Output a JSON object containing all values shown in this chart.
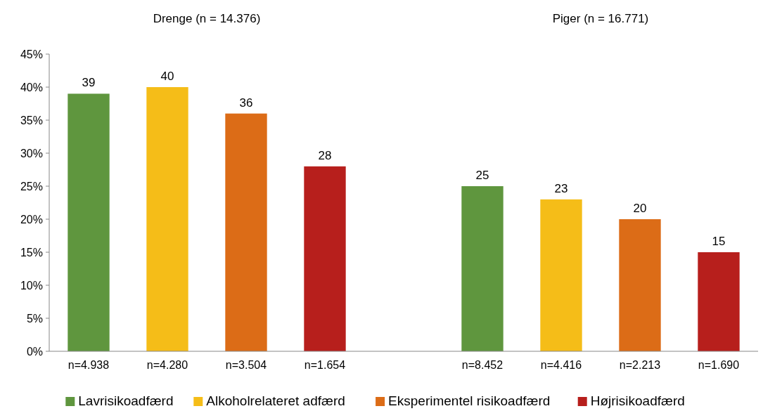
{
  "chart_data": {
    "type": "bar",
    "categories": [
      "n=4.938",
      "n=4.280",
      "n=3.504",
      "n=1.654",
      null,
      "n=8.452",
      "n=4.416",
      "n=2.213",
      "n=1.690"
    ],
    "series": [
      {
        "name": "Lavrisikoadfærd",
        "color": "#5f963e",
        "values": [
          39,
          null,
          null,
          null,
          null,
          25,
          null,
          null,
          null
        ]
      },
      {
        "name": "Alkoholrelateret adfærd",
        "color": "#f5bd18",
        "values": [
          null,
          40,
          null,
          null,
          null,
          null,
          23,
          null,
          null
        ]
      },
      {
        "name": "Eksperimentel risikoadfærd",
        "color": "#dc6c17",
        "values": [
          null,
          null,
          36,
          null,
          null,
          null,
          null,
          20,
          null
        ]
      },
      {
        "name": "Højrisikoadfærd",
        "color": "#b71f1c",
        "values": [
          null,
          null,
          null,
          28,
          null,
          null,
          null,
          null,
          15
        ]
      }
    ],
    "ylim": [
      0,
      45
    ],
    "yticks": [
      {
        "value": 0,
        "label": "0%"
      },
      {
        "value": 5,
        "label": "5%"
      },
      {
        "value": 10,
        "label": "10%"
      },
      {
        "value": 15,
        "label": "15%"
      },
      {
        "value": 20,
        "label": "20%"
      },
      {
        "value": 25,
        "label": "25%"
      },
      {
        "value": 30,
        "label": "30%"
      },
      {
        "value": 35,
        "label": "35%"
      },
      {
        "value": 40,
        "label": "40%"
      },
      {
        "value": 45,
        "label": "45%"
      }
    ],
    "annotations": [
      "Drenge (n = 14.376)",
      "Piger (n = 16.771)"
    ],
    "data_labels": true,
    "grid": false,
    "legend": "bottom"
  }
}
